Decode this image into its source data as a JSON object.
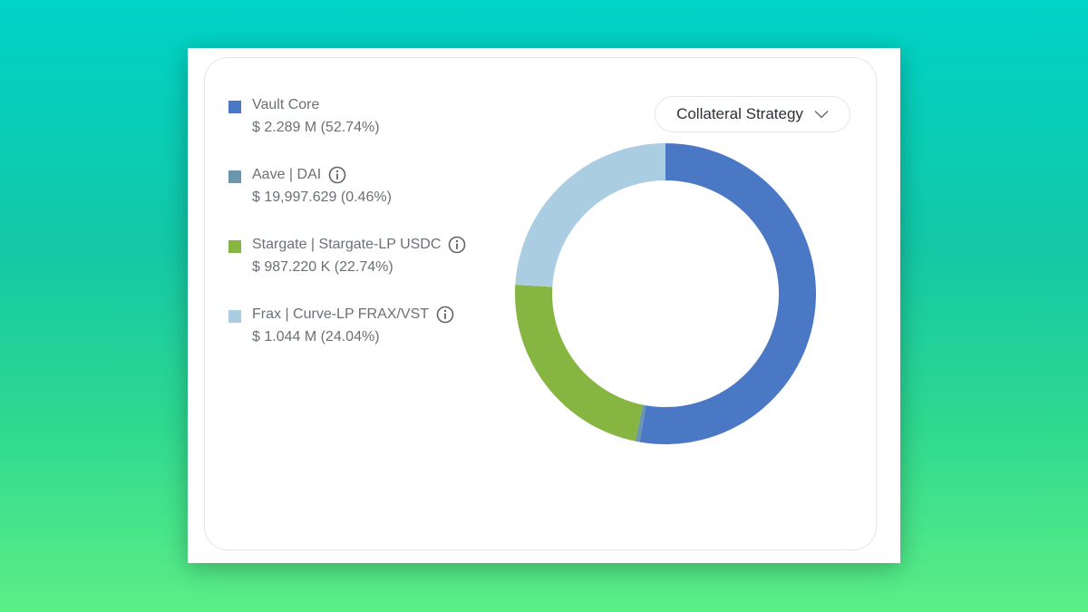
{
  "dropdown": {
    "label": "Collateral Strategy",
    "icon": "chevron-down-icon"
  },
  "legend": [
    {
      "name": "Vault Core",
      "value": "$ 2.289 M (52.74%)",
      "color": "#4a78c4",
      "info": false
    },
    {
      "name": "Aave | DAI",
      "value": "$ 19,997.629 (0.46%)",
      "color": "#6b97ae",
      "info": true
    },
    {
      "name": "Stargate | Stargate-LP USDC",
      "value": "$ 987.220 K (22.74%)",
      "color": "#86b542",
      "info": true
    },
    {
      "name": "Frax | Curve-LP FRAX/VST",
      "value": "$ 1.044 M (24.04%)",
      "color": "#aacde2",
      "info": true
    }
  ],
  "chart_data": {
    "type": "pie",
    "variant": "donut",
    "categories": [
      "Vault Core",
      "Aave | DAI",
      "Stargate | Stargate-LP USDC",
      "Frax | Curve-LP FRAX/VST"
    ],
    "values": [
      52.74,
      0.46,
      22.74,
      24.04
    ],
    "colors": [
      "#4a78c4",
      "#6b97ae",
      "#86b542",
      "#aacde2"
    ],
    "start": "top",
    "direction": "clockwise",
    "legend_position": "left"
  }
}
